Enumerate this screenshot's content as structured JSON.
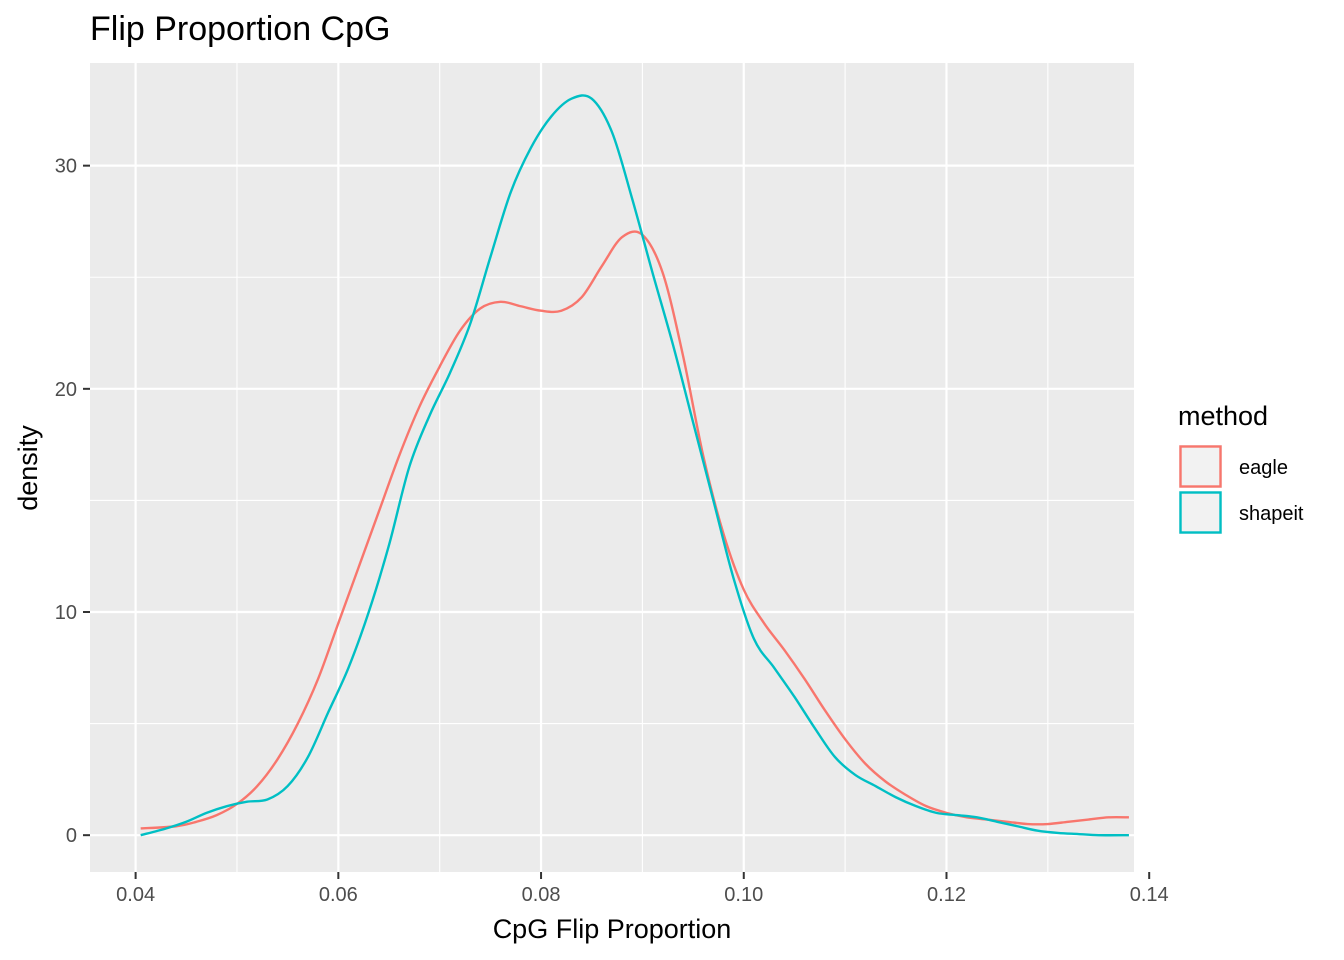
{
  "chart_data": {
    "type": "line",
    "subtype": "density",
    "title": "Flip Proportion CpG",
    "xlabel": "CpG Flip Proportion",
    "ylabel": "density",
    "xlim": [
      0.0355,
      0.1385
    ],
    "ylim": [
      -1.65,
      34.6
    ],
    "x_ticks": [
      0.04,
      0.06,
      0.08,
      0.1,
      0.12,
      0.14
    ],
    "x_tick_labels": [
      "0.04",
      "0.06",
      "0.08",
      "0.10",
      "0.12",
      "0.14"
    ],
    "y_ticks": [
      0,
      10,
      20,
      30
    ],
    "y_tick_labels": [
      "0",
      "10",
      "20",
      "30"
    ],
    "grid": true,
    "background": "#ebebeb",
    "legend": {
      "title": "method",
      "position": "right"
    },
    "series": [
      {
        "name": "eagle",
        "color": "#f8766d",
        "x": [
          0.0405,
          0.044,
          0.046,
          0.048,
          0.05,
          0.052,
          0.054,
          0.056,
          0.058,
          0.06,
          0.062,
          0.064,
          0.066,
          0.068,
          0.07,
          0.072,
          0.074,
          0.076,
          0.078,
          0.08,
          0.082,
          0.084,
          0.086,
          0.088,
          0.09,
          0.092,
          0.094,
          0.096,
          0.098,
          0.1,
          0.102,
          0.104,
          0.106,
          0.108,
          0.11,
          0.112,
          0.114,
          0.116,
          0.118,
          0.12,
          0.122,
          0.124,
          0.126,
          0.128,
          0.13,
          0.132,
          0.134,
          0.136,
          0.138
        ],
        "y": [
          0.3,
          0.4,
          0.6,
          0.9,
          1.4,
          2.2,
          3.4,
          5.0,
          7.0,
          9.5,
          12.0,
          14.5,
          17.0,
          19.2,
          21.0,
          22.6,
          23.6,
          23.9,
          23.7,
          23.5,
          23.5,
          24.1,
          25.5,
          26.8,
          26.9,
          25.2,
          21.5,
          17.0,
          13.5,
          11.0,
          9.5,
          8.3,
          7.0,
          5.6,
          4.3,
          3.2,
          2.4,
          1.8,
          1.3,
          1.0,
          0.8,
          0.7,
          0.6,
          0.5,
          0.5,
          0.6,
          0.7,
          0.8,
          0.8
        ]
      },
      {
        "name": "shapeit",
        "color": "#00bfc4",
        "x": [
          0.0405,
          0.043,
          0.045,
          0.047,
          0.049,
          0.051,
          0.053,
          0.055,
          0.057,
          0.059,
          0.061,
          0.063,
          0.065,
          0.067,
          0.069,
          0.071,
          0.073,
          0.075,
          0.077,
          0.079,
          0.081,
          0.083,
          0.085,
          0.087,
          0.089,
          0.091,
          0.093,
          0.095,
          0.097,
          0.099,
          0.101,
          0.103,
          0.105,
          0.107,
          0.109,
          0.111,
          0.113,
          0.115,
          0.117,
          0.119,
          0.121,
          0.123,
          0.125,
          0.127,
          0.129,
          0.131,
          0.133,
          0.135,
          0.138
        ],
        "y": [
          0.0,
          0.3,
          0.6,
          1.0,
          1.3,
          1.5,
          1.6,
          2.2,
          3.5,
          5.5,
          7.5,
          10.0,
          13.0,
          16.5,
          18.8,
          20.7,
          22.9,
          25.9,
          28.8,
          30.8,
          32.2,
          33.0,
          33.0,
          31.5,
          28.5,
          25.2,
          22.0,
          18.5,
          15.0,
          11.5,
          8.8,
          7.5,
          6.2,
          4.8,
          3.5,
          2.7,
          2.2,
          1.7,
          1.3,
          1.0,
          0.9,
          0.8,
          0.6,
          0.4,
          0.2,
          0.1,
          0.05,
          0.0,
          0.0
        ]
      }
    ]
  }
}
